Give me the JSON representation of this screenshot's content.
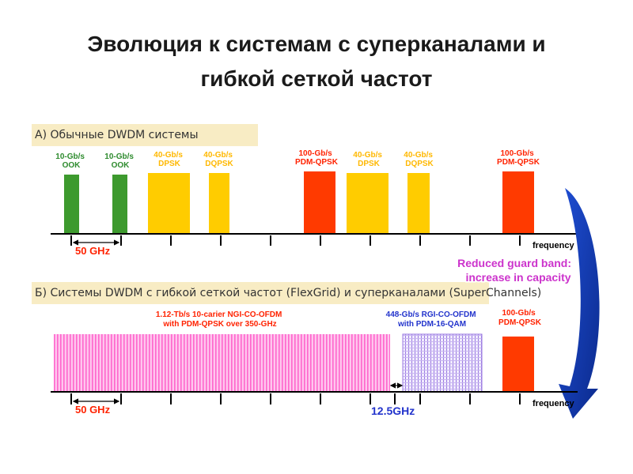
{
  "title": {
    "line1": "Эволюция к системам с суперканалами и",
    "line2": "гибкой сеткой частот"
  },
  "section_a": {
    "label": "А) Обычные DWDM системы",
    "channels": [
      {
        "line1": "10-Gb/s",
        "line2": "OOK",
        "color": "#3d9a2e"
      },
      {
        "line1": "10-Gb/s",
        "line2": "OOK",
        "color": "#3d9a2e"
      },
      {
        "line1": "40-Gb/s",
        "line2": "DPSK",
        "color": "#ffcc00"
      },
      {
        "line1": "40-Gb/s",
        "line2": "DQPSK",
        "color": "#ffcc00"
      },
      {
        "line1": "100-Gb/s",
        "line2": "PDM-QPSK",
        "color": "#ff3a00"
      },
      {
        "line1": "40-Gb/s",
        "line2": "DPSK",
        "color": "#ffcc00"
      },
      {
        "line1": "40-Gb/s",
        "line2": "DQPSK",
        "color": "#ffcc00"
      },
      {
        "line1": "100-Gb/s",
        "line2": "PDM-QPSK",
        "color": "#ff3a00"
      }
    ],
    "axis_label": "frequency",
    "spacing_label": "50 GHz"
  },
  "section_b": {
    "label": "Б) Системы DWDM с гибкой сеткой частот (FlexGrid) и суперканалами (SuperChannels)",
    "superchannel_1": {
      "line1": "1.12-Tb/s 10-carier NGI-CO-OFDM",
      "line2": "with PDM-QPSK over 350-GHz",
      "color": "#ff66cc"
    },
    "superchannel_2": {
      "line1": "448-Gb/s RGI-CO-OFDM",
      "line2": "with PDM-16-QAM",
      "color": "#7744dd"
    },
    "channel": {
      "line1": "100-Gb/s",
      "line2": "PDM-QPSK",
      "color": "#ff3a00"
    },
    "axis_label": "frequency",
    "spacing_label": "50 GHz",
    "guard_label": "12.5GHz"
  },
  "callout": {
    "line1": "Reduced guard band:",
    "line2": "increase in capacity"
  },
  "colors": {
    "label_red": "#ff2200",
    "label_yellow": "#ffb800",
    "label_green": "#2e8b2e",
    "label_blue": "#2233cc",
    "callout_text": "#cc33cc",
    "arrow": "#1133aa",
    "section_bg": "#f8ecc4"
  }
}
